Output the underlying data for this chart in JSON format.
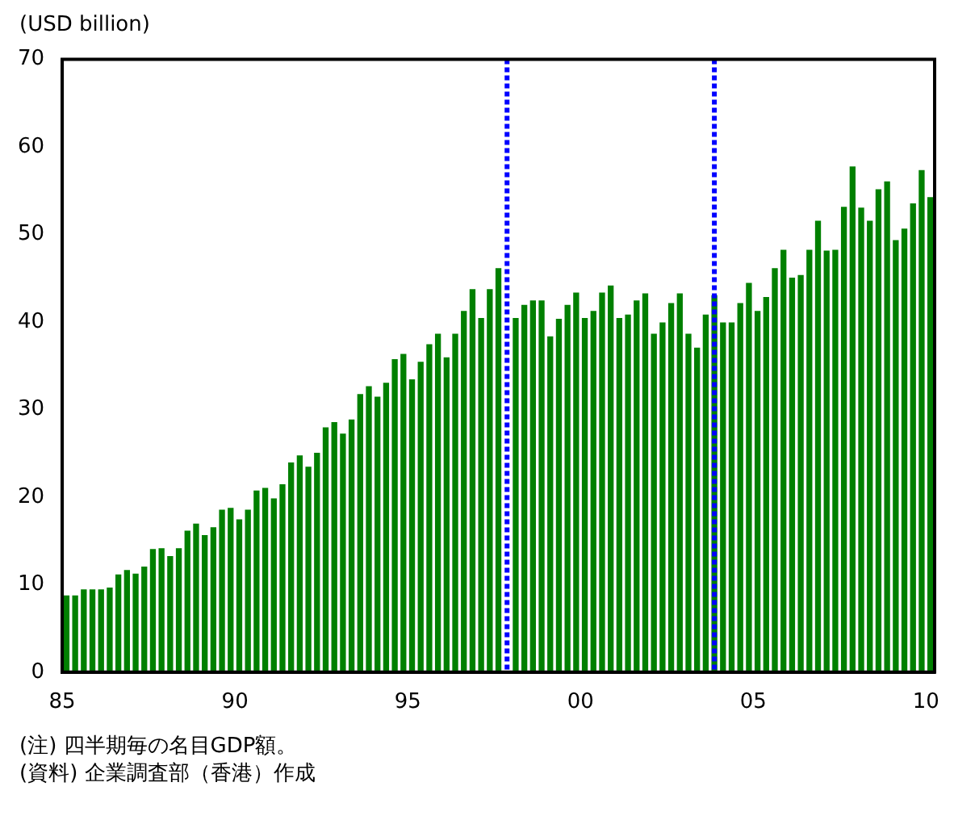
{
  "chart_data": {
    "type": "bar",
    "ylabel": "(USD billion)",
    "x": [
      1985.125,
      1985.375,
      1985.625,
      1985.875,
      1986.125,
      1986.375,
      1986.625,
      1986.875,
      1987.125,
      1987.375,
      1987.625,
      1987.875,
      1988.125,
      1988.375,
      1988.625,
      1988.875,
      1989.125,
      1989.375,
      1989.625,
      1989.875,
      1990.125,
      1990.375,
      1990.625,
      1990.875,
      1991.125,
      1991.375,
      1991.625,
      1991.875,
      1992.125,
      1992.375,
      1992.625,
      1992.875,
      1993.125,
      1993.375,
      1993.625,
      1993.875,
      1994.125,
      1994.375,
      1994.625,
      1994.875,
      1995.125,
      1995.375,
      1995.625,
      1995.875,
      1996.125,
      1996.375,
      1996.625,
      1996.875,
      1997.125,
      1997.375,
      1997.625,
      1997.875,
      1998.125,
      1998.375,
      1998.625,
      1998.875,
      1999.125,
      1999.375,
      1999.625,
      1999.875,
      2000.125,
      2000.375,
      2000.625,
      2000.875,
      2001.125,
      2001.375,
      2001.625,
      2001.875,
      2002.125,
      2002.375,
      2002.625,
      2002.875,
      2003.125,
      2003.375,
      2003.625,
      2003.875,
      2004.125,
      2004.375,
      2004.625,
      2004.875,
      2005.125,
      2005.375,
      2005.625,
      2005.875,
      2006.125,
      2006.375,
      2006.625,
      2006.875,
      2007.125,
      2007.375,
      2007.625,
      2007.875,
      2008.125,
      2008.375,
      2008.625,
      2008.875,
      2009.125,
      2009.375,
      2009.625,
      2009.875,
      2010.125
    ],
    "values": [
      8.7,
      8.7,
      9.4,
      9.4,
      9.4,
      9.6,
      11.1,
      11.6,
      11.2,
      12.0,
      14.0,
      14.1,
      13.2,
      14.1,
      16.1,
      16.9,
      15.6,
      16.5,
      18.5,
      18.7,
      17.4,
      18.5,
      20.7,
      21.0,
      19.8,
      21.4,
      23.9,
      24.7,
      23.4,
      25.0,
      27.9,
      28.5,
      27.2,
      28.8,
      31.7,
      32.6,
      31.4,
      33.0,
      35.7,
      36.3,
      33.4,
      35.4,
      37.4,
      38.6,
      35.9,
      38.6,
      41.2,
      43.7,
      40.4,
      43.7,
      46.1,
      null,
      40.4,
      41.9,
      42.4,
      42.4,
      38.3,
      40.3,
      41.9,
      43.3,
      40.4,
      41.2,
      43.3,
      44.1,
      40.4,
      40.8,
      42.4,
      43.2,
      38.6,
      39.9,
      42.1,
      43.2,
      38.6,
      37.0,
      40.8,
      43.0,
      39.9,
      39.9,
      42.1,
      44.4,
      41.2,
      42.8,
      46.1,
      48.2,
      45.0,
      45.3,
      48.2,
      51.5,
      48.1,
      48.2,
      53.1,
      57.7,
      53.0,
      51.5,
      55.1,
      56.0,
      49.3,
      50.6,
      53.5,
      57.3,
      54.2
    ],
    "color": "#008000",
    "xlim": [
      1985,
      2010.25
    ],
    "xticks": [
      {
        "value": 1985,
        "label": "85"
      },
      {
        "value": 1990,
        "label": "90"
      },
      {
        "value": 1995,
        "label": "95"
      },
      {
        "value": 2000,
        "label": "00"
      },
      {
        "value": 2005,
        "label": "05"
      },
      {
        "value": 2010,
        "label": "10"
      }
    ],
    "ylim": [
      0,
      70
    ],
    "yticks": [
      0,
      10,
      20,
      30,
      40,
      50,
      60,
      70
    ],
    "ref_lines": [
      {
        "axis": "x",
        "value": 1997.875,
        "color": "#0000ff",
        "line_style": "dotted"
      },
      {
        "axis": "x",
        "value": 2003.875,
        "color": "#0000ff",
        "line_style": "dotted"
      }
    ],
    "annotations": [
      "(注) 四半期毎の名目GDP額。",
      "(資料) 企業調査部（香港）作成"
    ]
  }
}
